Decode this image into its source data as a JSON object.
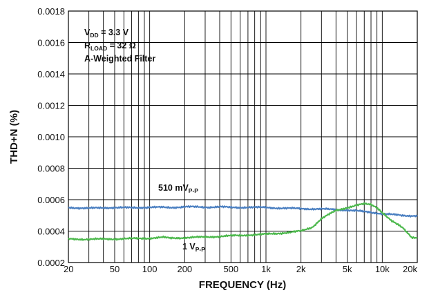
{
  "chart_data": {
    "type": "line",
    "x_scale": "log",
    "xlim": [
      20,
      20000
    ],
    "ylim": [
      0.0002,
      0.0018
    ],
    "xlabel": "FREQUENCY (Hz)",
    "ylabel": "THD+N (%)",
    "x_ticks": [
      "20",
      "50",
      "100",
      "200",
      "500",
      "1k",
      "2k",
      "5k",
      "10k",
      "20k"
    ],
    "x_tick_values": [
      20,
      50,
      100,
      200,
      500,
      1000,
      2000,
      5000,
      10000,
      20000
    ],
    "y_ticks": [
      "0.0002",
      "0.0004",
      "0.0006",
      "0.0008",
      "0.0010",
      "0.0012",
      "0.0014",
      "0.0016",
      "0.0018"
    ],
    "y_tick_values": [
      0.0002,
      0.0004,
      0.0006,
      0.0008,
      0.001,
      0.0012,
      0.0014,
      0.0016,
      0.0018
    ],
    "grid": true,
    "conditions": {
      "vdd": {
        "main": "V",
        "sub": "DD",
        "rest": " = 3.3 V"
      },
      "rload": {
        "main": "R",
        "sub": "LOAD",
        "rest": " = 32 Ω"
      },
      "filter": "A-Weighted Filter"
    },
    "series": [
      {
        "label_main": "510 mV",
        "label_sub": "P-P",
        "color": "#4a7fc1",
        "x": [
          20,
          30,
          40,
          50,
          70,
          100,
          150,
          200,
          300,
          400,
          500,
          700,
          1000,
          1500,
          2000,
          3000,
          4000,
          5000,
          6000,
          7000,
          8000,
          9000,
          10000,
          12000,
          15000,
          20000
        ],
        "y": [
          0.00055,
          0.000545,
          0.000548,
          0.00055,
          0.000548,
          0.000552,
          0.00055,
          0.000555,
          0.000552,
          0.000555,
          0.00055,
          0.000552,
          0.00055,
          0.000545,
          0.000543,
          0.00054,
          0.000537,
          0.000533,
          0.000528,
          0.000524,
          0.00052,
          0.000515,
          0.00051,
          0.000505,
          0.0005,
          0.000497
        ]
      },
      {
        "label_main": "1 V",
        "label_sub": "P-P",
        "color": "#4cb84c",
        "x": [
          20,
          30,
          50,
          70,
          100,
          130,
          150,
          200,
          300,
          500,
          700,
          1000,
          1500,
          2000,
          2500,
          3000,
          4000,
          5000,
          6000,
          7000,
          8000,
          9000,
          10000,
          12000,
          15000,
          18000,
          20000
        ],
        "y": [
          0.00035,
          0.000348,
          0.00035,
          0.000352,
          0.000355,
          0.00036,
          0.000355,
          0.000358,
          0.000362,
          0.00037,
          0.000375,
          0.00038,
          0.00039,
          0.0004,
          0.000425,
          0.00048,
          0.00053,
          0.00055,
          0.000565,
          0.000572,
          0.000568,
          0.00055,
          0.00052,
          0.000465,
          0.00042,
          0.00036,
          0.00036
        ]
      }
    ]
  }
}
